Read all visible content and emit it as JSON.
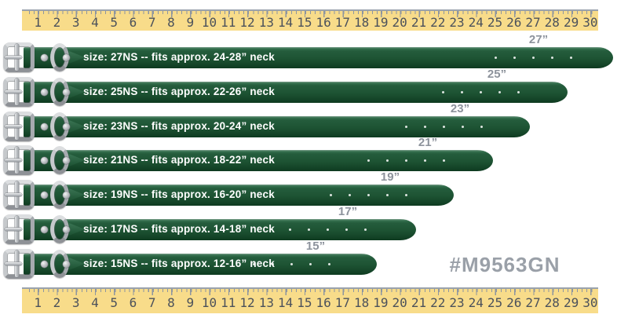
{
  "product_code": "#M9563GN",
  "ruler": {
    "unit_numbers": [
      "1",
      "2",
      "3",
      "4",
      "5",
      "6",
      "7",
      "8",
      "9",
      "10",
      "11",
      "12",
      "13",
      "14",
      "15",
      "16",
      "17",
      "18",
      "19",
      "20",
      "21",
      "22",
      "23",
      "24",
      "25",
      "26",
      "27",
      "28",
      "29",
      "30"
    ]
  },
  "collars": [
    {
      "sku": "27NS",
      "length_inches": 27,
      "neck_fit": "24-28 in",
      "size_text": "size: 27NS -- fits approx. 24-28” neck",
      "length_label": "27”"
    },
    {
      "sku": "25NS",
      "length_inches": 25,
      "neck_fit": "22-26 in",
      "size_text": "size: 25NS -- fits approx. 22-26” neck",
      "length_label": "25”"
    },
    {
      "sku": "23NS",
      "length_inches": 23,
      "neck_fit": "20-24 in",
      "size_text": "size: 23NS -- fits approx. 20-24” neck",
      "length_label": "23”"
    },
    {
      "sku": "21NS",
      "length_inches": 21,
      "neck_fit": "18-22 in",
      "size_text": "size: 21NS -- fits approx. 18-22” neck",
      "length_label": "21”"
    },
    {
      "sku": "19NS",
      "length_inches": 19,
      "neck_fit": "16-20 in",
      "size_text": "size: 19NS -- fits approx. 16-20” neck",
      "length_label": "19”"
    },
    {
      "sku": "17NS",
      "length_inches": 17,
      "neck_fit": "14-18 in",
      "size_text": "size: 17NS -- fits approx. 14-18” neck",
      "length_label": "17”"
    },
    {
      "sku": "15NS",
      "length_inches": 15,
      "neck_fit": "12-16 in",
      "size_text": "size: 15NS -- fits approx. 12-16” neck",
      "length_label": "15”"
    }
  ],
  "colors": {
    "collar_green": "#1e5434",
    "ruler_yellow": "#f8dc8a",
    "label_gray": "#8d939c",
    "code_gray": "#9aa0a8"
  }
}
